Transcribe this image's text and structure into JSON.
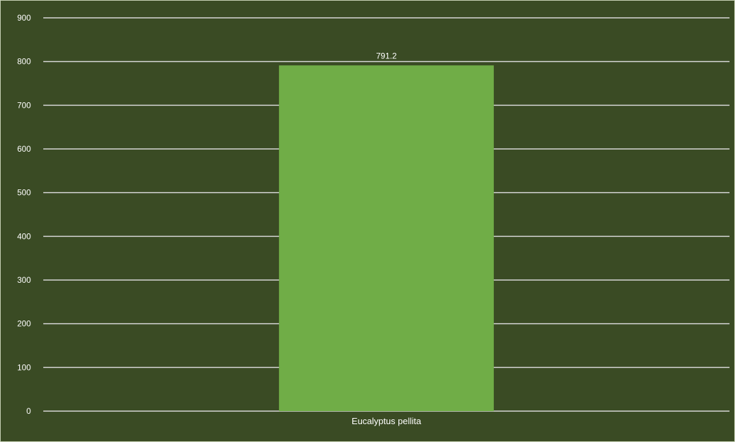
{
  "chart_data": {
    "type": "bar",
    "categories": [
      "Eucalyptus pellita"
    ],
    "values": [
      791.2
    ],
    "data_labels": [
      "791.2"
    ],
    "title": "",
    "xlabel": "",
    "ylabel": "",
    "ylim": [
      0,
      900
    ],
    "yticks": [
      0,
      100,
      200,
      300,
      400,
      500,
      600,
      700,
      800,
      900
    ],
    "grid": true,
    "legend": "none",
    "colors": {
      "background": "#3a4b24",
      "bar": "#70ad47",
      "gridline": "#d9d9d9",
      "text": "#ffffff",
      "frame": "#c9d3b8"
    }
  }
}
